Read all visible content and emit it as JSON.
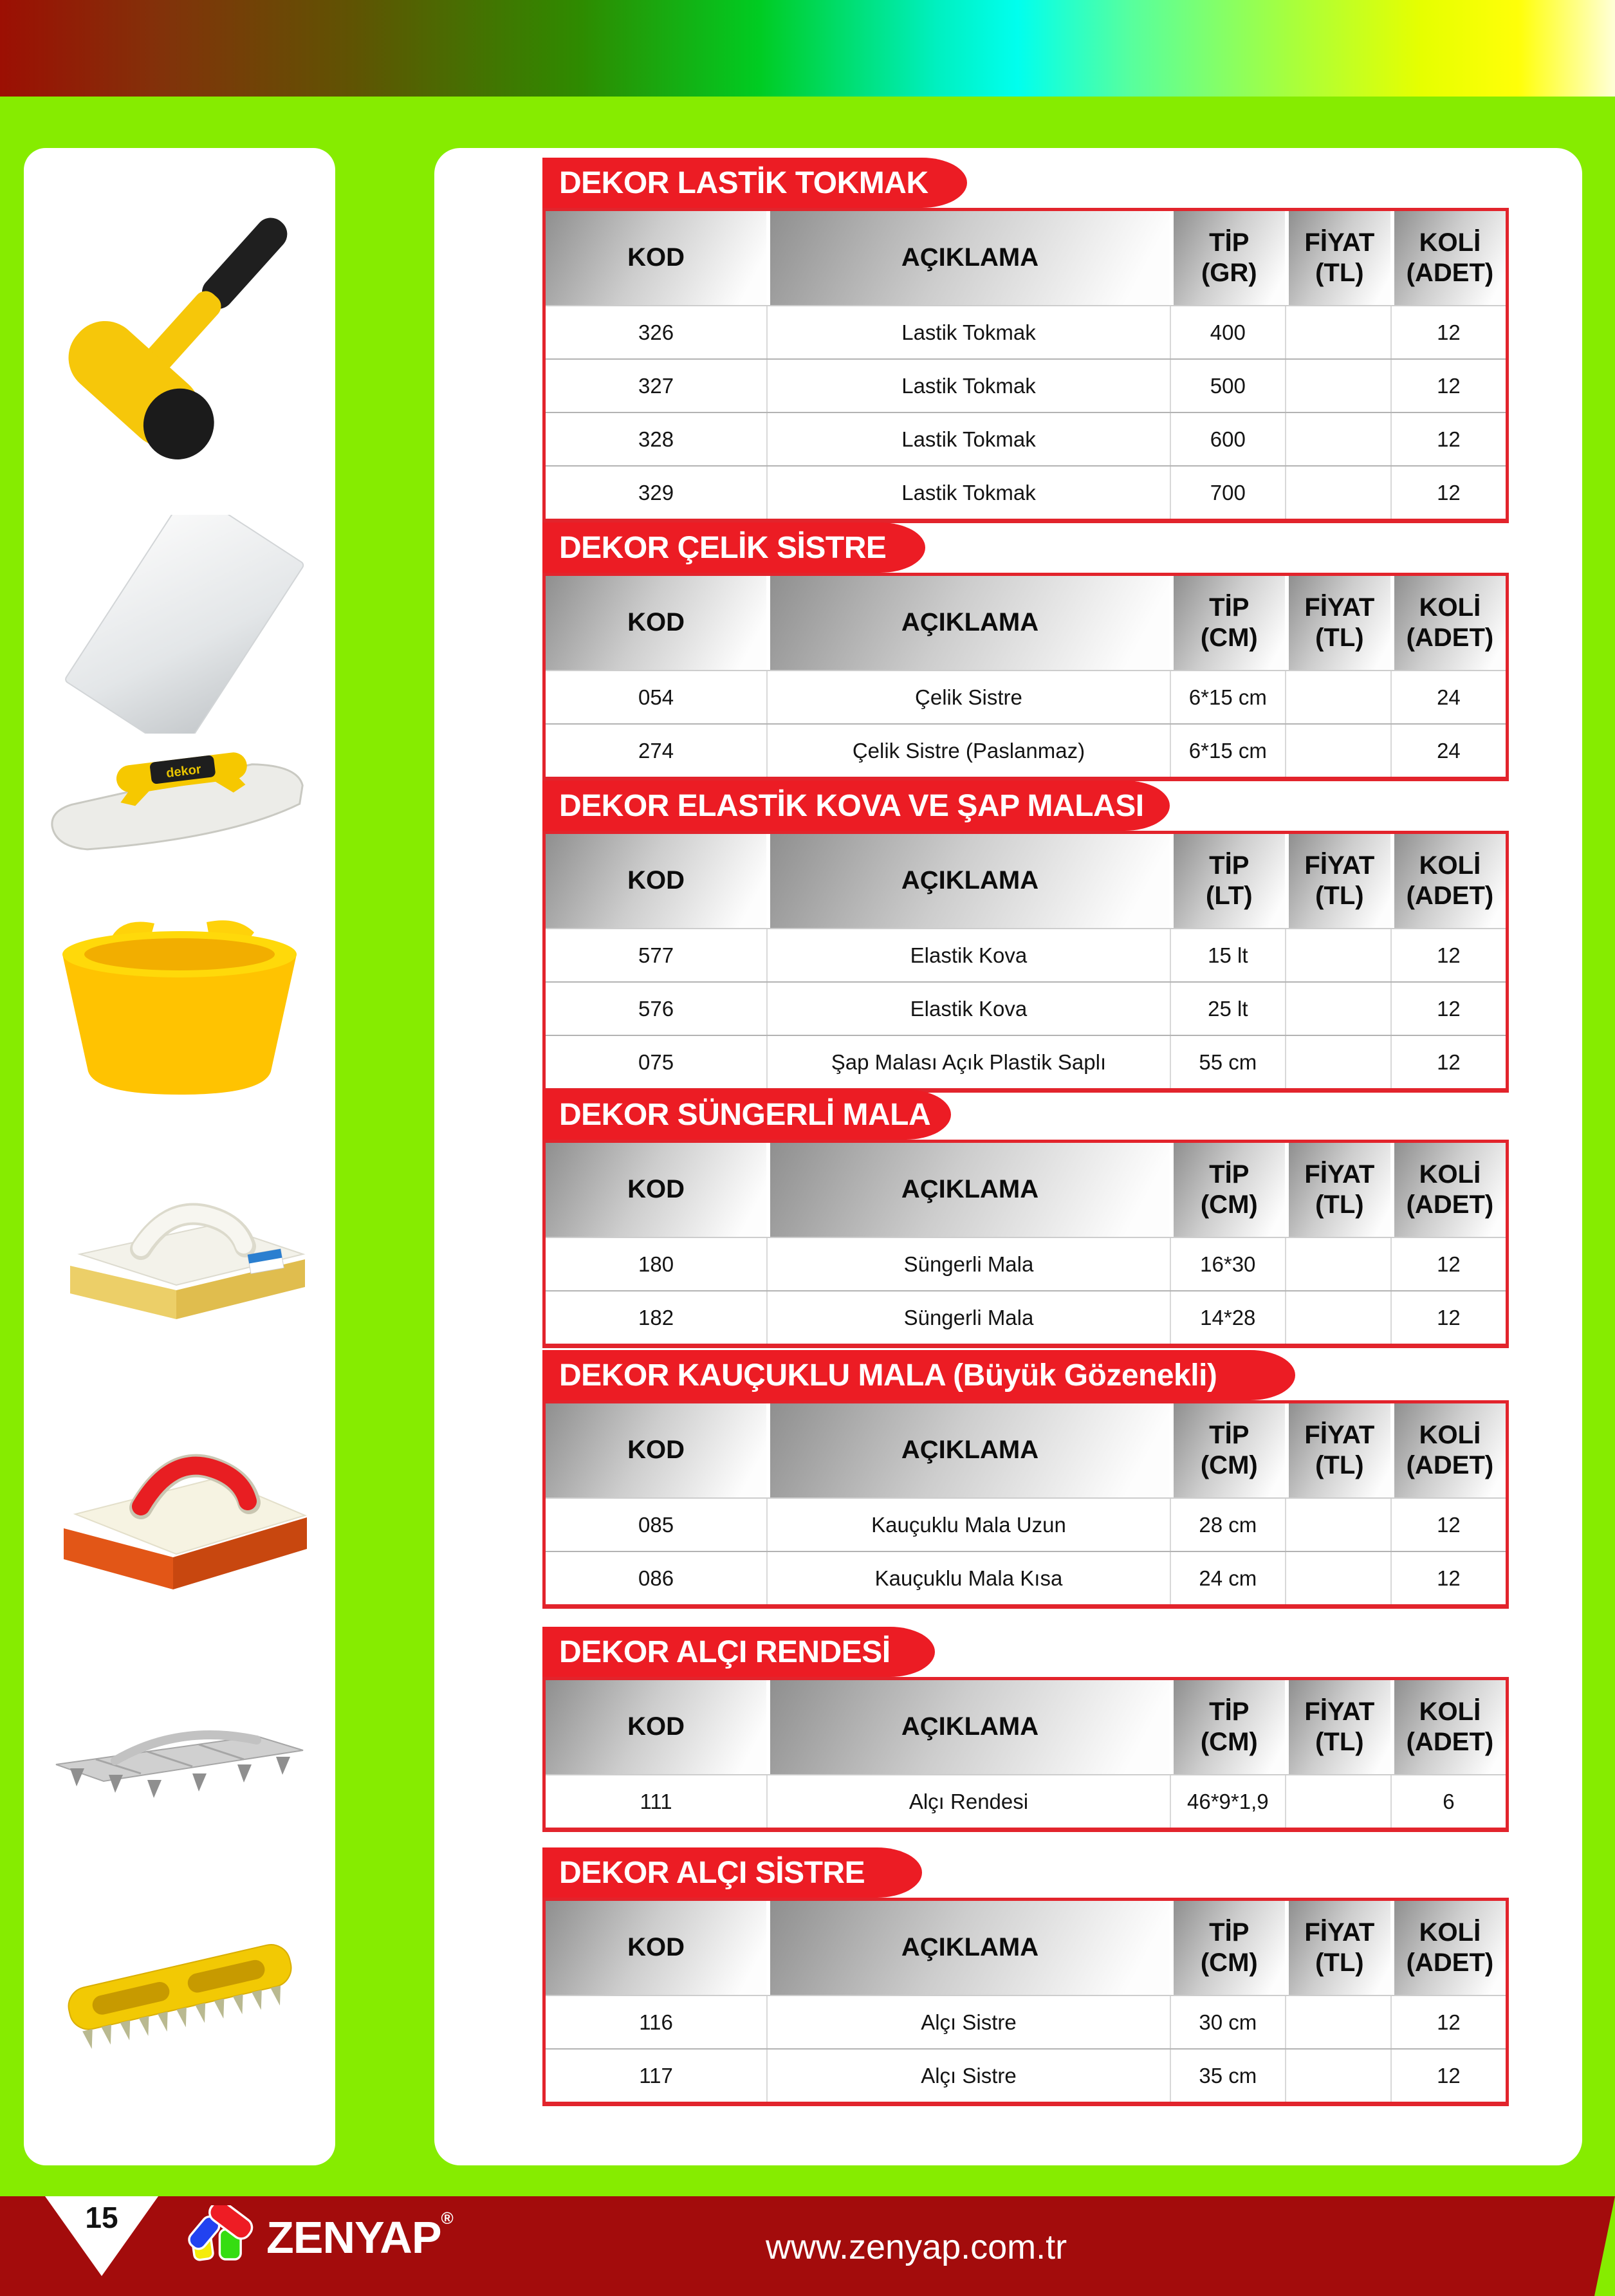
{
  "colors": {
    "accent_red": "#ec1c24",
    "background_green": "#86ec00",
    "footer_maroon": "#a30c0c",
    "header_gray": "#8f8f8f"
  },
  "footer": {
    "page_number": "15",
    "brand": "ZENYAP",
    "brand_reg": "®",
    "website": "www.zenyap.com.tr"
  },
  "sidebar": {
    "trowel_label": "dekor",
    "products": [
      {
        "name": "rubber-mallet-image"
      },
      {
        "name": "steel-scraper-image"
      },
      {
        "name": "flat-trowel-image"
      },
      {
        "name": "flexible-bucket-image"
      },
      {
        "name": "sponge-float-image"
      },
      {
        "name": "rubber-float-image"
      },
      {
        "name": "plaster-rasp-image"
      },
      {
        "name": "plaster-scraper-image"
      }
    ]
  },
  "tables": [
    {
      "title": "DEKOR LASTİK TOKMAK",
      "columns": [
        "KOD",
        "AÇIKLAMA",
        "TİP\n(GR)",
        "FİYAT\n(TL)",
        "KOLİ\n(ADET)"
      ],
      "rows": [
        [
          "326",
          "Lastik Tokmak",
          "400",
          "",
          "12"
        ],
        [
          "327",
          "Lastik Tokmak",
          "500",
          "",
          "12"
        ],
        [
          "328",
          "Lastik Tokmak",
          "600",
          "",
          "12"
        ],
        [
          "329",
          "Lastik Tokmak",
          "700",
          "",
          "12"
        ]
      ]
    },
    {
      "title": "DEKOR ÇELİK SİSTRE",
      "columns": [
        "KOD",
        "AÇIKLAMA",
        "TİP\n(CM)",
        "FİYAT\n(TL)",
        "KOLİ\n(ADET)"
      ],
      "rows": [
        [
          "054",
          "Çelik Sistre",
          "6*15 cm",
          "",
          "24"
        ],
        [
          "274",
          "Çelik Sistre (Paslanmaz)",
          "6*15 cm",
          "",
          "24"
        ]
      ]
    },
    {
      "title": "DEKOR ELASTİK KOVA VE ŞAP MALASI",
      "columns": [
        "KOD",
        "AÇIKLAMA",
        "TİP\n(LT)",
        "FİYAT\n(TL)",
        "KOLİ\n(ADET)"
      ],
      "rows": [
        [
          "577",
          "Elastik Kova",
          "15 lt",
          "",
          "12"
        ],
        [
          "576",
          "Elastik Kova",
          "25 lt",
          "",
          "12"
        ],
        [
          "075",
          "Şap Malası Açık Plastik Saplı",
          "55 cm",
          "",
          "12"
        ]
      ]
    },
    {
      "title": "DEKOR SÜNGERLİ MALA",
      "columns": [
        "KOD",
        "AÇIKLAMA",
        "TİP\n(CM)",
        "FİYAT\n(TL)",
        "KOLİ\n(ADET)"
      ],
      "rows": [
        [
          "180",
          "Süngerli Mala",
          "16*30",
          "",
          "12"
        ],
        [
          "182",
          "Süngerli Mala",
          "14*28",
          "",
          "12"
        ]
      ]
    },
    {
      "title": "DEKOR KAUÇUKLU MALA (Büyük Gözenekli)",
      "columns": [
        "KOD",
        "AÇIKLAMA",
        "TİP\n(CM)",
        "FİYAT\n(TL)",
        "KOLİ\n(ADET)"
      ],
      "rows": [
        [
          "085",
          "Kauçuklu Mala Uzun",
          "28 cm",
          "",
          "12"
        ],
        [
          "086",
          "Kauçuklu Mala Kısa",
          "24 cm",
          "",
          "12"
        ]
      ]
    },
    {
      "title": "DEKOR ALÇI RENDESİ",
      "columns": [
        "KOD",
        "AÇIKLAMA",
        "TİP\n(CM)",
        "FİYAT\n(TL)",
        "KOLİ\n(ADET)"
      ],
      "rows": [
        [
          "111",
          "Alçı Rendesi",
          "46*9*1,9",
          "",
          "6"
        ]
      ]
    },
    {
      "title": "DEKOR ALÇI SİSTRE",
      "columns": [
        "KOD",
        "AÇIKLAMA",
        "TİP\n(CM)",
        "FİYAT\n(TL)",
        "KOLİ\n(ADET)"
      ],
      "rows": [
        [
          "116",
          "Alçı Sistre",
          "30 cm",
          "",
          "12"
        ],
        [
          "117",
          "Alçı Sistre",
          "35 cm",
          "",
          "12"
        ]
      ]
    }
  ]
}
